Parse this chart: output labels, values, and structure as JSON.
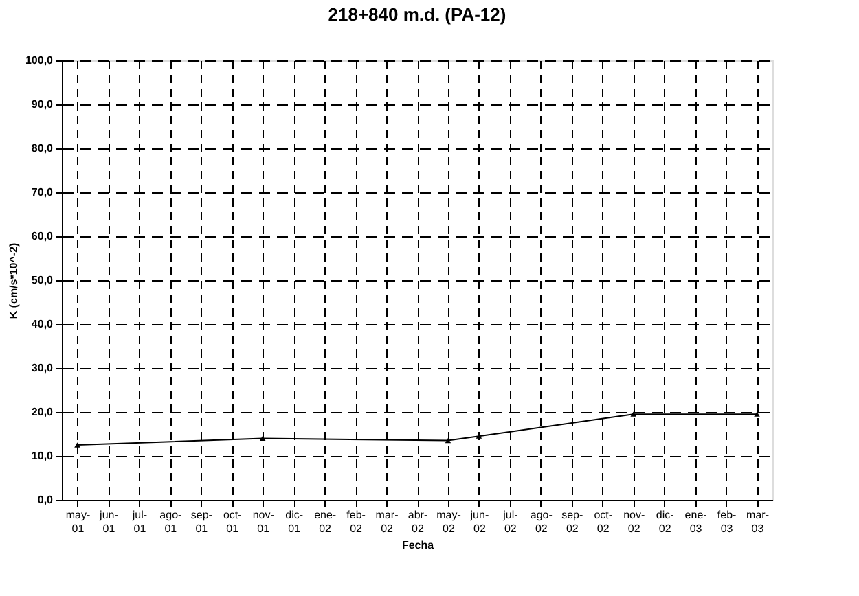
{
  "chart_data": {
    "type": "line",
    "title": "218+840 m.d. (PA-12)",
    "xlabel": "Fecha",
    "ylabel": "K (cm/s*10^-2)",
    "categories": [
      "may-01",
      "jun-01",
      "jul-01",
      "ago-01",
      "sep-01",
      "oct-01",
      "nov-01",
      "dic-01",
      "ene-02",
      "feb-02",
      "mar-02",
      "abr-02",
      "may-02",
      "jun-02",
      "jul-02",
      "ago-02",
      "sep-02",
      "oct-02",
      "nov-02",
      "dic-02",
      "ene-03",
      "feb-03",
      "mar-03"
    ],
    "series": [
      {
        "color": "#000000",
        "values": [
          12.5,
          null,
          null,
          null,
          null,
          null,
          14.0,
          null,
          null,
          null,
          null,
          null,
          13.5,
          14.5,
          null,
          null,
          null,
          null,
          19.5,
          null,
          null,
          null,
          19.5
        ]
      }
    ],
    "ylim": [
      0,
      100
    ],
    "yticks": [
      {
        "value": 0,
        "label": "0,0"
      },
      {
        "value": 10,
        "label": "10,0"
      },
      {
        "value": 20,
        "label": "20,0"
      },
      {
        "value": 30,
        "label": "30,0"
      },
      {
        "value": 40,
        "label": "40,0"
      },
      {
        "value": 50,
        "label": "50,0"
      },
      {
        "value": 60,
        "label": "60,0"
      },
      {
        "value": 70,
        "label": "70,0"
      },
      {
        "value": 80,
        "label": "80,0"
      },
      {
        "value": 90,
        "label": "90,0"
      },
      {
        "value": 100,
        "label": "100,0"
      }
    ],
    "grid": true,
    "marker": "triangle",
    "line_style": "solid"
  }
}
